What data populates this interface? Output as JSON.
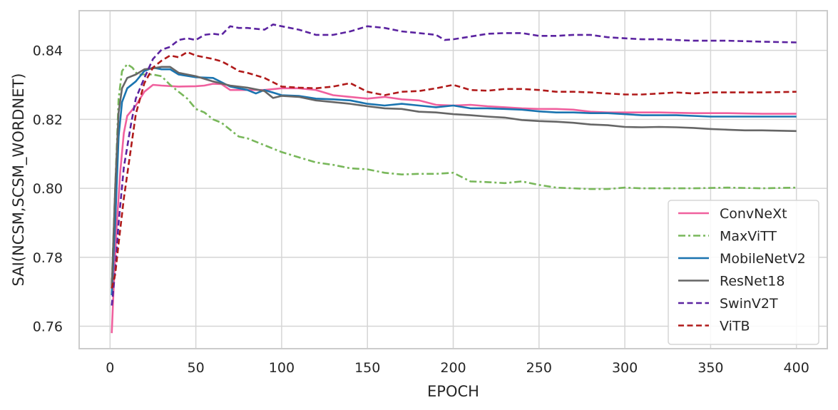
{
  "chart_data": {
    "type": "line",
    "title": "",
    "xlabel": "EPOCH",
    "ylabel": "SAI(NCSM,SCSM_WORDNET)",
    "xlim": [
      -18,
      418
    ],
    "ylim": [
      0.7535,
      0.8515
    ],
    "x_ticks": [
      0,
      50,
      100,
      150,
      200,
      250,
      300,
      350,
      400
    ],
    "x_tick_labels": [
      "0",
      "50",
      "100",
      "150",
      "200",
      "250",
      "300",
      "350",
      "400"
    ],
    "y_ticks": [
      0.76,
      0.78,
      0.8,
      0.82,
      0.84
    ],
    "y_tick_labels": [
      "0.76",
      "0.78",
      "0.80",
      "0.82",
      "0.84"
    ],
    "grid": true,
    "legend_position": "bottom-right",
    "series": [
      {
        "name": "ConvNeXt",
        "color": "#f0609e",
        "dash": "solid",
        "points": [
          [
            1,
            0.758
          ],
          [
            2,
            0.77
          ],
          [
            4,
            0.79
          ],
          [
            6,
            0.805
          ],
          [
            8,
            0.816
          ],
          [
            10,
            0.821
          ],
          [
            15,
            0.824
          ],
          [
            20,
            0.828
          ],
          [
            25,
            0.83
          ],
          [
            30,
            0.8298
          ],
          [
            40,
            0.8295
          ],
          [
            50,
            0.8296
          ],
          [
            55,
            0.8298
          ],
          [
            60,
            0.8303
          ],
          [
            65,
            0.8302
          ],
          [
            70,
            0.8285
          ],
          [
            80,
            0.8285
          ],
          [
            90,
            0.8285
          ],
          [
            100,
            0.829
          ],
          [
            110,
            0.829
          ],
          [
            120,
            0.8285
          ],
          [
            130,
            0.827
          ],
          [
            140,
            0.8265
          ],
          [
            150,
            0.826
          ],
          [
            160,
            0.8265
          ],
          [
            170,
            0.8258
          ],
          [
            180,
            0.8255
          ],
          [
            190,
            0.8242
          ],
          [
            200,
            0.824
          ],
          [
            210,
            0.8242
          ],
          [
            220,
            0.8238
          ],
          [
            230,
            0.8235
          ],
          [
            240,
            0.8232
          ],
          [
            250,
            0.823
          ],
          [
            260,
            0.823
          ],
          [
            270,
            0.8228
          ],
          [
            280,
            0.8222
          ],
          [
            290,
            0.822
          ],
          [
            300,
            0.822
          ],
          [
            320,
            0.822
          ],
          [
            340,
            0.8218
          ],
          [
            360,
            0.8218
          ],
          [
            380,
            0.8216
          ],
          [
            400,
            0.8216
          ]
        ]
      },
      {
        "name": "MaxViTT",
        "color": "#78b75a",
        "dash": "dashdot",
        "points": [
          [
            1,
            0.772
          ],
          [
            3,
            0.8
          ],
          [
            5,
            0.826
          ],
          [
            7,
            0.834
          ],
          [
            10,
            0.836
          ],
          [
            13,
            0.835
          ],
          [
            16,
            0.833
          ],
          [
            20,
            0.833
          ],
          [
            25,
            0.833
          ],
          [
            30,
            0.8325
          ],
          [
            35,
            0.83
          ],
          [
            40,
            0.828
          ],
          [
            45,
            0.826
          ],
          [
            50,
            0.823
          ],
          [
            55,
            0.822
          ],
          [
            60,
            0.82
          ],
          [
            65,
            0.819
          ],
          [
            70,
            0.817
          ],
          [
            75,
            0.815
          ],
          [
            80,
            0.8145
          ],
          [
            90,
            0.8125
          ],
          [
            100,
            0.8105
          ],
          [
            110,
            0.809
          ],
          [
            120,
            0.8075
          ],
          [
            130,
            0.8068
          ],
          [
            140,
            0.8058
          ],
          [
            150,
            0.8055
          ],
          [
            160,
            0.8045
          ],
          [
            170,
            0.804
          ],
          [
            180,
            0.8042
          ],
          [
            190,
            0.8042
          ],
          [
            200,
            0.8045
          ],
          [
            210,
            0.802
          ],
          [
            220,
            0.8018
          ],
          [
            230,
            0.8015
          ],
          [
            240,
            0.802
          ],
          [
            250,
            0.801
          ],
          [
            260,
            0.8002
          ],
          [
            270,
            0.8
          ],
          [
            280,
            0.7998
          ],
          [
            290,
            0.7998
          ],
          [
            300,
            0.8002
          ],
          [
            310,
            0.8
          ],
          [
            320,
            0.8
          ],
          [
            340,
            0.8
          ],
          [
            360,
            0.8002
          ],
          [
            380,
            0.8
          ],
          [
            400,
            0.8002
          ]
        ]
      },
      {
        "name": "MobileNetV2",
        "color": "#1a74b0",
        "dash": "solid",
        "points": [
          [
            1,
            0.769
          ],
          [
            3,
            0.79
          ],
          [
            5,
            0.815
          ],
          [
            7,
            0.825
          ],
          [
            10,
            0.829
          ],
          [
            15,
            0.831
          ],
          [
            20,
            0.834
          ],
          [
            25,
            0.835
          ],
          [
            30,
            0.8345
          ],
          [
            35,
            0.8345
          ],
          [
            40,
            0.833
          ],
          [
            50,
            0.8322
          ],
          [
            60,
            0.832
          ],
          [
            70,
            0.8295
          ],
          [
            80,
            0.8285
          ],
          [
            85,
            0.8275
          ],
          [
            90,
            0.8285
          ],
          [
            100,
            0.827
          ],
          [
            110,
            0.8268
          ],
          [
            120,
            0.826
          ],
          [
            130,
            0.8258
          ],
          [
            140,
            0.8255
          ],
          [
            150,
            0.8245
          ],
          [
            160,
            0.824
          ],
          [
            170,
            0.8245
          ],
          [
            180,
            0.824
          ],
          [
            190,
            0.8235
          ],
          [
            200,
            0.824
          ],
          [
            210,
            0.8232
          ],
          [
            220,
            0.8232
          ],
          [
            230,
            0.823
          ],
          [
            240,
            0.8228
          ],
          [
            250,
            0.8223
          ],
          [
            260,
            0.822
          ],
          [
            270,
            0.822
          ],
          [
            280,
            0.8218
          ],
          [
            290,
            0.8218
          ],
          [
            300,
            0.8215
          ],
          [
            310,
            0.8212
          ],
          [
            320,
            0.8212
          ],
          [
            330,
            0.8212
          ],
          [
            340,
            0.821
          ],
          [
            350,
            0.8208
          ],
          [
            360,
            0.8208
          ],
          [
            380,
            0.8208
          ],
          [
            400,
            0.8208
          ]
        ]
      },
      {
        "name": "ResNet18",
        "color": "#666666",
        "dash": "solid",
        "points": [
          [
            1,
            0.771
          ],
          [
            3,
            0.8
          ],
          [
            5,
            0.822
          ],
          [
            7,
            0.829
          ],
          [
            10,
            0.832
          ],
          [
            15,
            0.833
          ],
          [
            20,
            0.8345
          ],
          [
            25,
            0.8348
          ],
          [
            30,
            0.8352
          ],
          [
            35,
            0.8352
          ],
          [
            40,
            0.8335
          ],
          [
            50,
            0.8325
          ],
          [
            60,
            0.831
          ],
          [
            70,
            0.8298
          ],
          [
            80,
            0.8292
          ],
          [
            90,
            0.8282
          ],
          [
            95,
            0.8262
          ],
          [
            100,
            0.8268
          ],
          [
            110,
            0.8265
          ],
          [
            120,
            0.8255
          ],
          [
            130,
            0.825
          ],
          [
            140,
            0.8245
          ],
          [
            150,
            0.8238
          ],
          [
            160,
            0.8232
          ],
          [
            170,
            0.823
          ],
          [
            180,
            0.8222
          ],
          [
            190,
            0.822
          ],
          [
            200,
            0.8215
          ],
          [
            210,
            0.8212
          ],
          [
            220,
            0.8208
          ],
          [
            230,
            0.8205
          ],
          [
            240,
            0.8198
          ],
          [
            250,
            0.8195
          ],
          [
            260,
            0.8193
          ],
          [
            270,
            0.819
          ],
          [
            280,
            0.8185
          ],
          [
            290,
            0.8183
          ],
          [
            300,
            0.8178
          ],
          [
            310,
            0.8177
          ],
          [
            320,
            0.8178
          ],
          [
            330,
            0.8177
          ],
          [
            340,
            0.8175
          ],
          [
            350,
            0.8172
          ],
          [
            360,
            0.817
          ],
          [
            370,
            0.8168
          ],
          [
            380,
            0.8168
          ],
          [
            390,
            0.8167
          ],
          [
            400,
            0.8166
          ]
        ]
      },
      {
        "name": "SwinV2T",
        "color": "#5b23a0",
        "dash": "dashed",
        "points": [
          [
            1,
            0.766
          ],
          [
            3,
            0.776
          ],
          [
            5,
            0.79
          ],
          [
            8,
            0.806
          ],
          [
            12,
            0.818
          ],
          [
            15,
            0.826
          ],
          [
            20,
            0.832
          ],
          [
            25,
            0.8375
          ],
          [
            30,
            0.8402
          ],
          [
            35,
            0.841
          ],
          [
            40,
            0.843
          ],
          [
            45,
            0.8435
          ],
          [
            50,
            0.843
          ],
          [
            55,
            0.8445
          ],
          [
            60,
            0.8448
          ],
          [
            65,
            0.8445
          ],
          [
            70,
            0.847
          ],
          [
            75,
            0.8465
          ],
          [
            80,
            0.8465
          ],
          [
            90,
            0.846
          ],
          [
            95,
            0.8475
          ],
          [
            100,
            0.847
          ],
          [
            110,
            0.846
          ],
          [
            120,
            0.8445
          ],
          [
            130,
            0.8445
          ],
          [
            140,
            0.8455
          ],
          [
            150,
            0.847
          ],
          [
            160,
            0.8465
          ],
          [
            170,
            0.8455
          ],
          [
            180,
            0.845
          ],
          [
            190,
            0.8445
          ],
          [
            195,
            0.843
          ],
          [
            200,
            0.8432
          ],
          [
            210,
            0.844
          ],
          [
            220,
            0.8448
          ],
          [
            230,
            0.845
          ],
          [
            240,
            0.845
          ],
          [
            250,
            0.8442
          ],
          [
            260,
            0.8442
          ],
          [
            270,
            0.8445
          ],
          [
            280,
            0.8445
          ],
          [
            290,
            0.8438
          ],
          [
            300,
            0.8435
          ],
          [
            310,
            0.8432
          ],
          [
            320,
            0.8432
          ],
          [
            330,
            0.843
          ],
          [
            340,
            0.8428
          ],
          [
            350,
            0.8428
          ],
          [
            360,
            0.8428
          ],
          [
            380,
            0.8425
          ],
          [
            400,
            0.8423
          ]
        ]
      },
      {
        "name": "ViTB",
        "color": "#b01a1a",
        "dash": "dashed",
        "points": [
          [
            1,
            0.771
          ],
          [
            3,
            0.775
          ],
          [
            5,
            0.784
          ],
          [
            8,
            0.797
          ],
          [
            12,
            0.811
          ],
          [
            15,
            0.8215
          ],
          [
            20,
            0.8305
          ],
          [
            25,
            0.835
          ],
          [
            30,
            0.837
          ],
          [
            35,
            0.8385
          ],
          [
            40,
            0.838
          ],
          [
            45,
            0.8395
          ],
          [
            50,
            0.8385
          ],
          [
            55,
            0.838
          ],
          [
            60,
            0.8375
          ],
          [
            65,
            0.8368
          ],
          [
            70,
            0.8355
          ],
          [
            75,
            0.834
          ],
          [
            80,
            0.8335
          ],
          [
            90,
            0.832
          ],
          [
            100,
            0.8295
          ],
          [
            110,
            0.8292
          ],
          [
            120,
            0.829
          ],
          [
            130,
            0.8295
          ],
          [
            140,
            0.8305
          ],
          [
            150,
            0.828
          ],
          [
            160,
            0.827
          ],
          [
            170,
            0.828
          ],
          [
            180,
            0.8282
          ],
          [
            190,
            0.829
          ],
          [
            200,
            0.83
          ],
          [
            210,
            0.8285
          ],
          [
            220,
            0.8283
          ],
          [
            230,
            0.8288
          ],
          [
            240,
            0.8288
          ],
          [
            250,
            0.8285
          ],
          [
            260,
            0.828
          ],
          [
            270,
            0.828
          ],
          [
            280,
            0.8278
          ],
          [
            290,
            0.8275
          ],
          [
            300,
            0.8272
          ],
          [
            310,
            0.8272
          ],
          [
            320,
            0.8275
          ],
          [
            330,
            0.8278
          ],
          [
            340,
            0.8275
          ],
          [
            350,
            0.8278
          ],
          [
            360,
            0.8278
          ],
          [
            380,
            0.8278
          ],
          [
            400,
            0.828
          ]
        ]
      }
    ]
  }
}
